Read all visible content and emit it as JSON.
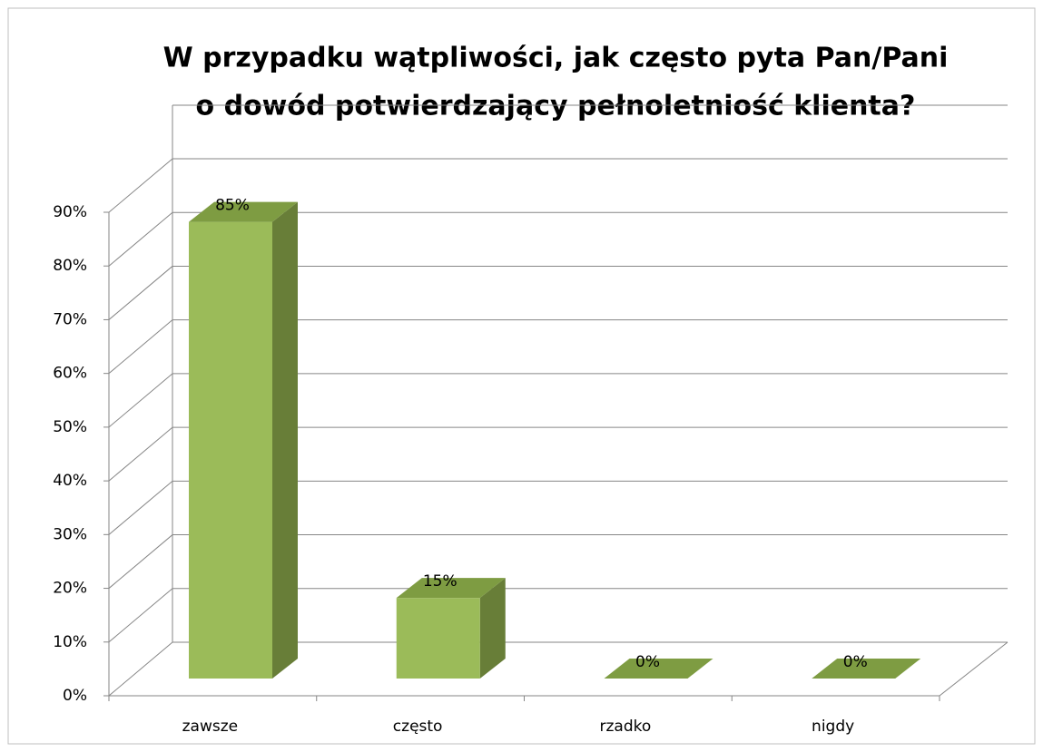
{
  "chart_data": {
    "type": "bar3d",
    "title": [
      "W przypadku wątpliwości, jak często pyta Pan/Pani",
      "o dowód potwierdzający pełnoletniość klienta?"
    ],
    "categories": [
      "zawsze",
      "często",
      "rzadko",
      "nigdy"
    ],
    "values": [
      85,
      15,
      0,
      0
    ],
    "value_labels": [
      "85%",
      "15%",
      "0%",
      "0%"
    ],
    "color": "#9bbb59",
    "ylim": [
      0,
      90
    ],
    "yticks": [
      {
        "value": 0,
        "label": "0%"
      },
      {
        "value": 10,
        "label": "10%"
      },
      {
        "value": 20,
        "label": "20%"
      },
      {
        "value": 30,
        "label": "30%"
      },
      {
        "value": 40,
        "label": "40%"
      },
      {
        "value": 50,
        "label": "50%"
      },
      {
        "value": 60,
        "label": "60%"
      },
      {
        "value": 70,
        "label": "70%"
      },
      {
        "value": 80,
        "label": "80%"
      },
      {
        "value": 90,
        "label": "90%"
      }
    ],
    "grid": true
  }
}
